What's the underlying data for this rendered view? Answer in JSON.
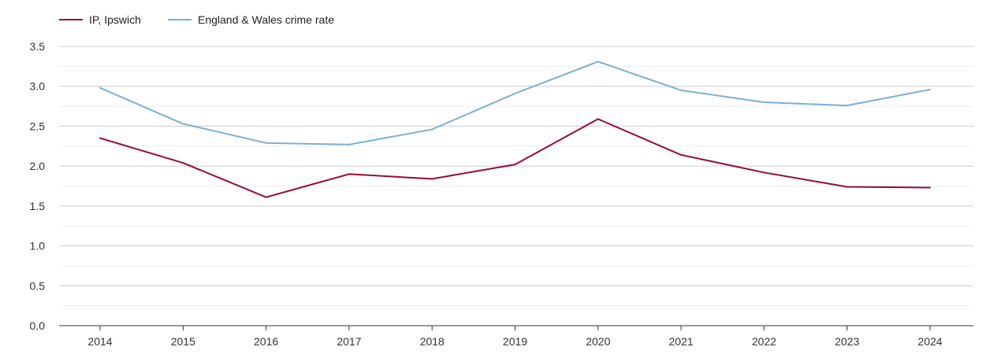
{
  "chart_data": {
    "type": "line",
    "title": "",
    "xlabel": "",
    "ylabel": "",
    "categories": [
      "2014",
      "2015",
      "2016",
      "2017",
      "2018",
      "2019",
      "2020",
      "2021",
      "2022",
      "2023",
      "2024"
    ],
    "ylim": [
      0,
      3.5
    ],
    "yticks": [
      "0.0",
      "0.5",
      "1.0",
      "1.5",
      "2.0",
      "2.5",
      "3.0",
      "3.5"
    ],
    "grid": true,
    "legend_position": "top-left",
    "series": [
      {
        "name": "IP, Ipswich",
        "color": "#9b0a32",
        "values": [
          2.35,
          2.04,
          1.61,
          1.9,
          1.84,
          2.02,
          2.59,
          2.14,
          1.92,
          1.74,
          1.73
        ]
      },
      {
        "name": "England & Wales crime rate",
        "color": "#7bafd4",
        "values": [
          2.98,
          2.53,
          2.29,
          2.27,
          2.46,
          2.91,
          3.31,
          2.95,
          2.8,
          2.76,
          2.96
        ]
      }
    ]
  }
}
